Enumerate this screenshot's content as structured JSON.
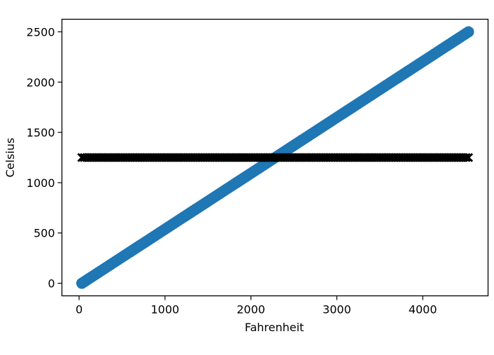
{
  "chart_data": {
    "type": "scatter",
    "title": "",
    "xlabel": "Fahrenheit",
    "ylabel": "Celsius",
    "xlim": [
      -200,
      4760
    ],
    "ylim": [
      -125,
      2625
    ],
    "xticks": [
      0,
      1000,
      2000,
      3000,
      4000
    ],
    "yticks": [
      0,
      500,
      1000,
      1500,
      2000,
      2500
    ],
    "grid": false,
    "legend": "none",
    "series": [
      {
        "marker": "circle",
        "color": "#1f77b4",
        "x": [
          32,
          4532
        ],
        "y": [
          0,
          2500
        ],
        "description_points": "dense points along y = (x - 32) * 5/9"
      },
      {
        "marker": "x",
        "color": "#000000",
        "x": [
          32,
          4532
        ],
        "y": [
          1250,
          1250
        ]
      }
    ]
  }
}
